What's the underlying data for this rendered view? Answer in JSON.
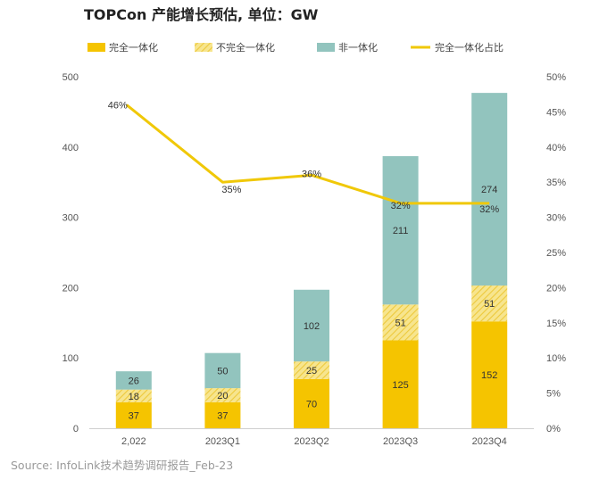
{
  "chart_data": {
    "type": "bar",
    "stacked": true,
    "title": "TOPCon 产能增长预估, 单位：GW",
    "categories": [
      "2,022",
      "2023Q1",
      "2023Q2",
      "2023Q3",
      "2023Q4"
    ],
    "series": [
      {
        "name": "完全一体化",
        "values": [
          37,
          37,
          70,
          125,
          152
        ],
        "color": "#F5C400",
        "pattern": "solid"
      },
      {
        "name": "不完全一体化",
        "values": [
          18,
          20,
          25,
          51,
          51
        ],
        "color": "#F2DB6E",
        "pattern": "hatched"
      },
      {
        "name": "非一体化",
        "values": [
          26,
          50,
          102,
          211,
          274
        ],
        "color": "#92C4BE",
        "pattern": "solid"
      }
    ],
    "line_series": {
      "name": "完全一体化占比",
      "values": [
        46,
        35,
        36,
        32,
        32
      ],
      "labels": [
        "46%",
        "35%",
        "36%",
        "32%",
        "32%"
      ],
      "color": "#F0C808",
      "axis": "right"
    },
    "y_left": {
      "ylim": [
        0,
        500
      ],
      "ticks": [
        "0",
        "100",
        "200",
        "300",
        "400",
        "500"
      ]
    },
    "y_right": {
      "ylim": [
        0,
        50
      ],
      "ticks": [
        "0%",
        "5%",
        "10%",
        "15%",
        "20%",
        "25%",
        "30%",
        "35%",
        "40%",
        "45%",
        "50%"
      ]
    },
    "legend_position": "top",
    "grid": false
  },
  "source": "Source: InfoLink技术趋势调研报告_Feb-23"
}
